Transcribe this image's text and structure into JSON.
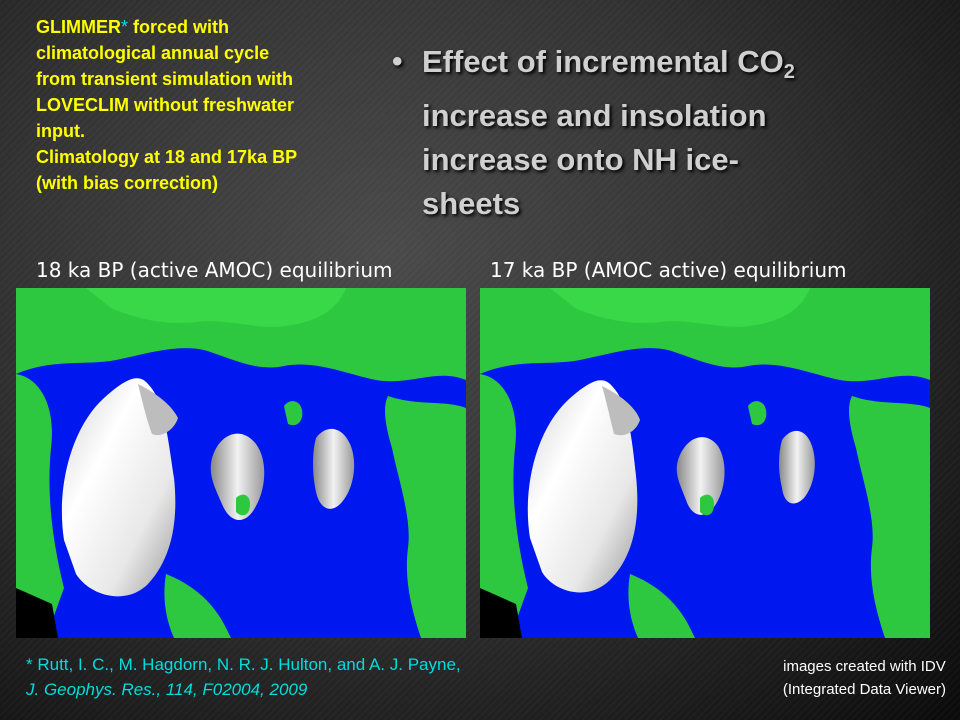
{
  "info": {
    "line1_prefix": "GLIMMER",
    "line1_star": "*",
    "line1_suffix": " forced with",
    "line2": "climatological annual cycle",
    "line3": "from transient simulation with",
    "line4": "LOVECLIM without freshwater",
    "line5": "input.",
    "line6": "Climatology at 18 and 17ka BP",
    "line7": "(with bias correction)"
  },
  "title": {
    "bullet": "•",
    "line1_prefix": "Effect of incremental CO",
    "line1_sub": "2",
    "line2": "increase and insolation",
    "line3": "increase onto NH ice-",
    "line4": "sheets"
  },
  "panels": [
    {
      "caption": "18 ka BP (active AMOC) equilibrium"
    },
    {
      "caption": "17 ka BP (AMOC active) equilibrium"
    }
  ],
  "citation": {
    "line1": "* Rutt, I. C., M. Hagdorn, N. R. J. Hulton, and A. J. Payne,",
    "line2": "J. Geophys. Res., 114, F02004, 2009"
  },
  "credits": {
    "line1": "images created with IDV",
    "line2": "(Integrated Data Viewer)"
  },
  "colors": {
    "heading_yellow": "#ffff00",
    "citation_cyan": "#00dddd",
    "ocean_blue": "#0018f0",
    "land_green": "#2ec840",
    "ice_white": "#f0f0f0"
  }
}
